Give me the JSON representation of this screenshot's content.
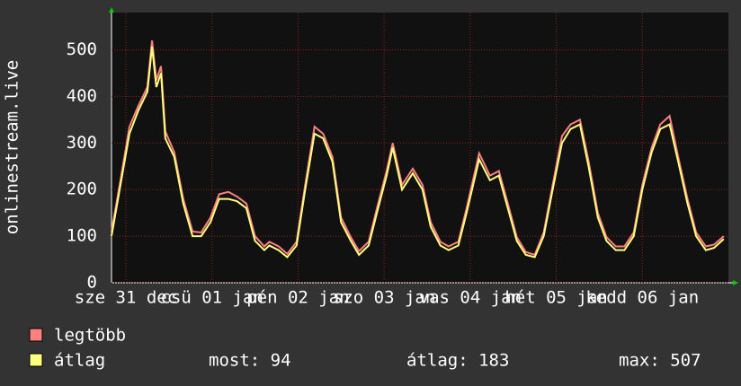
{
  "chart_data": {
    "type": "line",
    "ylabel": "onlinestream.live",
    "x": [
      0,
      2.5,
      5,
      7.5,
      10,
      11.3,
      12.5,
      13.8,
      15,
      17.5,
      20,
      22.6,
      25,
      27.6,
      30,
      32.6,
      35,
      37.6,
      40,
      42.6,
      44,
      46.6,
      49,
      51.6,
      54,
      56.6,
      59,
      61.6,
      64,
      66.7,
      69,
      71.7,
      74,
      76.7,
      78.4,
      81,
      84,
      86.7,
      89,
      91.7,
      94,
      96.7,
      99,
      102.5,
      105.5,
      108,
      110.5,
      113,
      115.5,
      118,
      120.5,
      123,
      125.6,
      128,
      130.6,
      133,
      135.6,
      138,
      140.6,
      143,
      145.6,
      148,
      150.6,
      153,
      155.6,
      158,
      160.6,
      163,
      165.7,
      168,
      170.7
    ],
    "series": [
      {
        "name": "legtöbb",
        "color": "#ff7f7f",
        "values": [
          110,
          220,
          335,
          380,
          420,
          520,
          435,
          465,
          325,
          280,
          180,
          110,
          108,
          140,
          190,
          195,
          185,
          170,
          100,
          78,
          88,
          78,
          62,
          88,
          210,
          335,
          320,
          270,
          140,
          98,
          68,
          88,
          160,
          240,
          300,
          210,
          245,
          210,
          130,
          88,
          78,
          88,
          160,
          278,
          230,
          240,
          170,
          98,
          66,
          60,
          108,
          210,
          315,
          340,
          350,
          262,
          150,
          98,
          78,
          78,
          108,
          210,
          290,
          340,
          358,
          270,
          180,
          108,
          78,
          82,
          100
        ]
      },
      {
        "name": "átlag",
        "color": "#ffff7f",
        "values": [
          100,
          210,
          320,
          370,
          410,
          507,
          420,
          450,
          310,
          270,
          170,
          100,
          100,
          130,
          180,
          180,
          175,
          160,
          90,
          70,
          80,
          70,
          55,
          80,
          200,
          320,
          310,
          260,
          130,
          90,
          60,
          80,
          150,
          230,
          290,
          200,
          235,
          200,
          120,
          80,
          70,
          80,
          150,
          265,
          220,
          230,
          160,
          90,
          60,
          55,
          100,
          200,
          300,
          330,
          340,
          250,
          140,
          90,
          70,
          70,
          100,
          200,
          280,
          330,
          340,
          260,
          170,
          100,
          70,
          75,
          94
        ]
      }
    ],
    "xlim": [
      0,
      172
    ],
    "xticks": [
      {
        "value": 4,
        "label": "sze 31 dec"
      },
      {
        "value": 28,
        "label": "csü 01 jan"
      },
      {
        "value": 52,
        "label": "pén 02 jan"
      },
      {
        "value": 76,
        "label": "szo 03 jan"
      },
      {
        "value": 100,
        "label": "vas 04 jan"
      },
      {
        "value": 124,
        "label": "hét 05 jan"
      },
      {
        "value": 148,
        "label": "kedd 06 jan"
      }
    ],
    "ylim": [
      0,
      580
    ],
    "yticks": [
      0,
      100,
      200,
      300,
      400,
      500
    ],
    "grid": true,
    "stats": [
      "most: 94",
      "átlag: 183",
      "max: 507"
    ]
  }
}
